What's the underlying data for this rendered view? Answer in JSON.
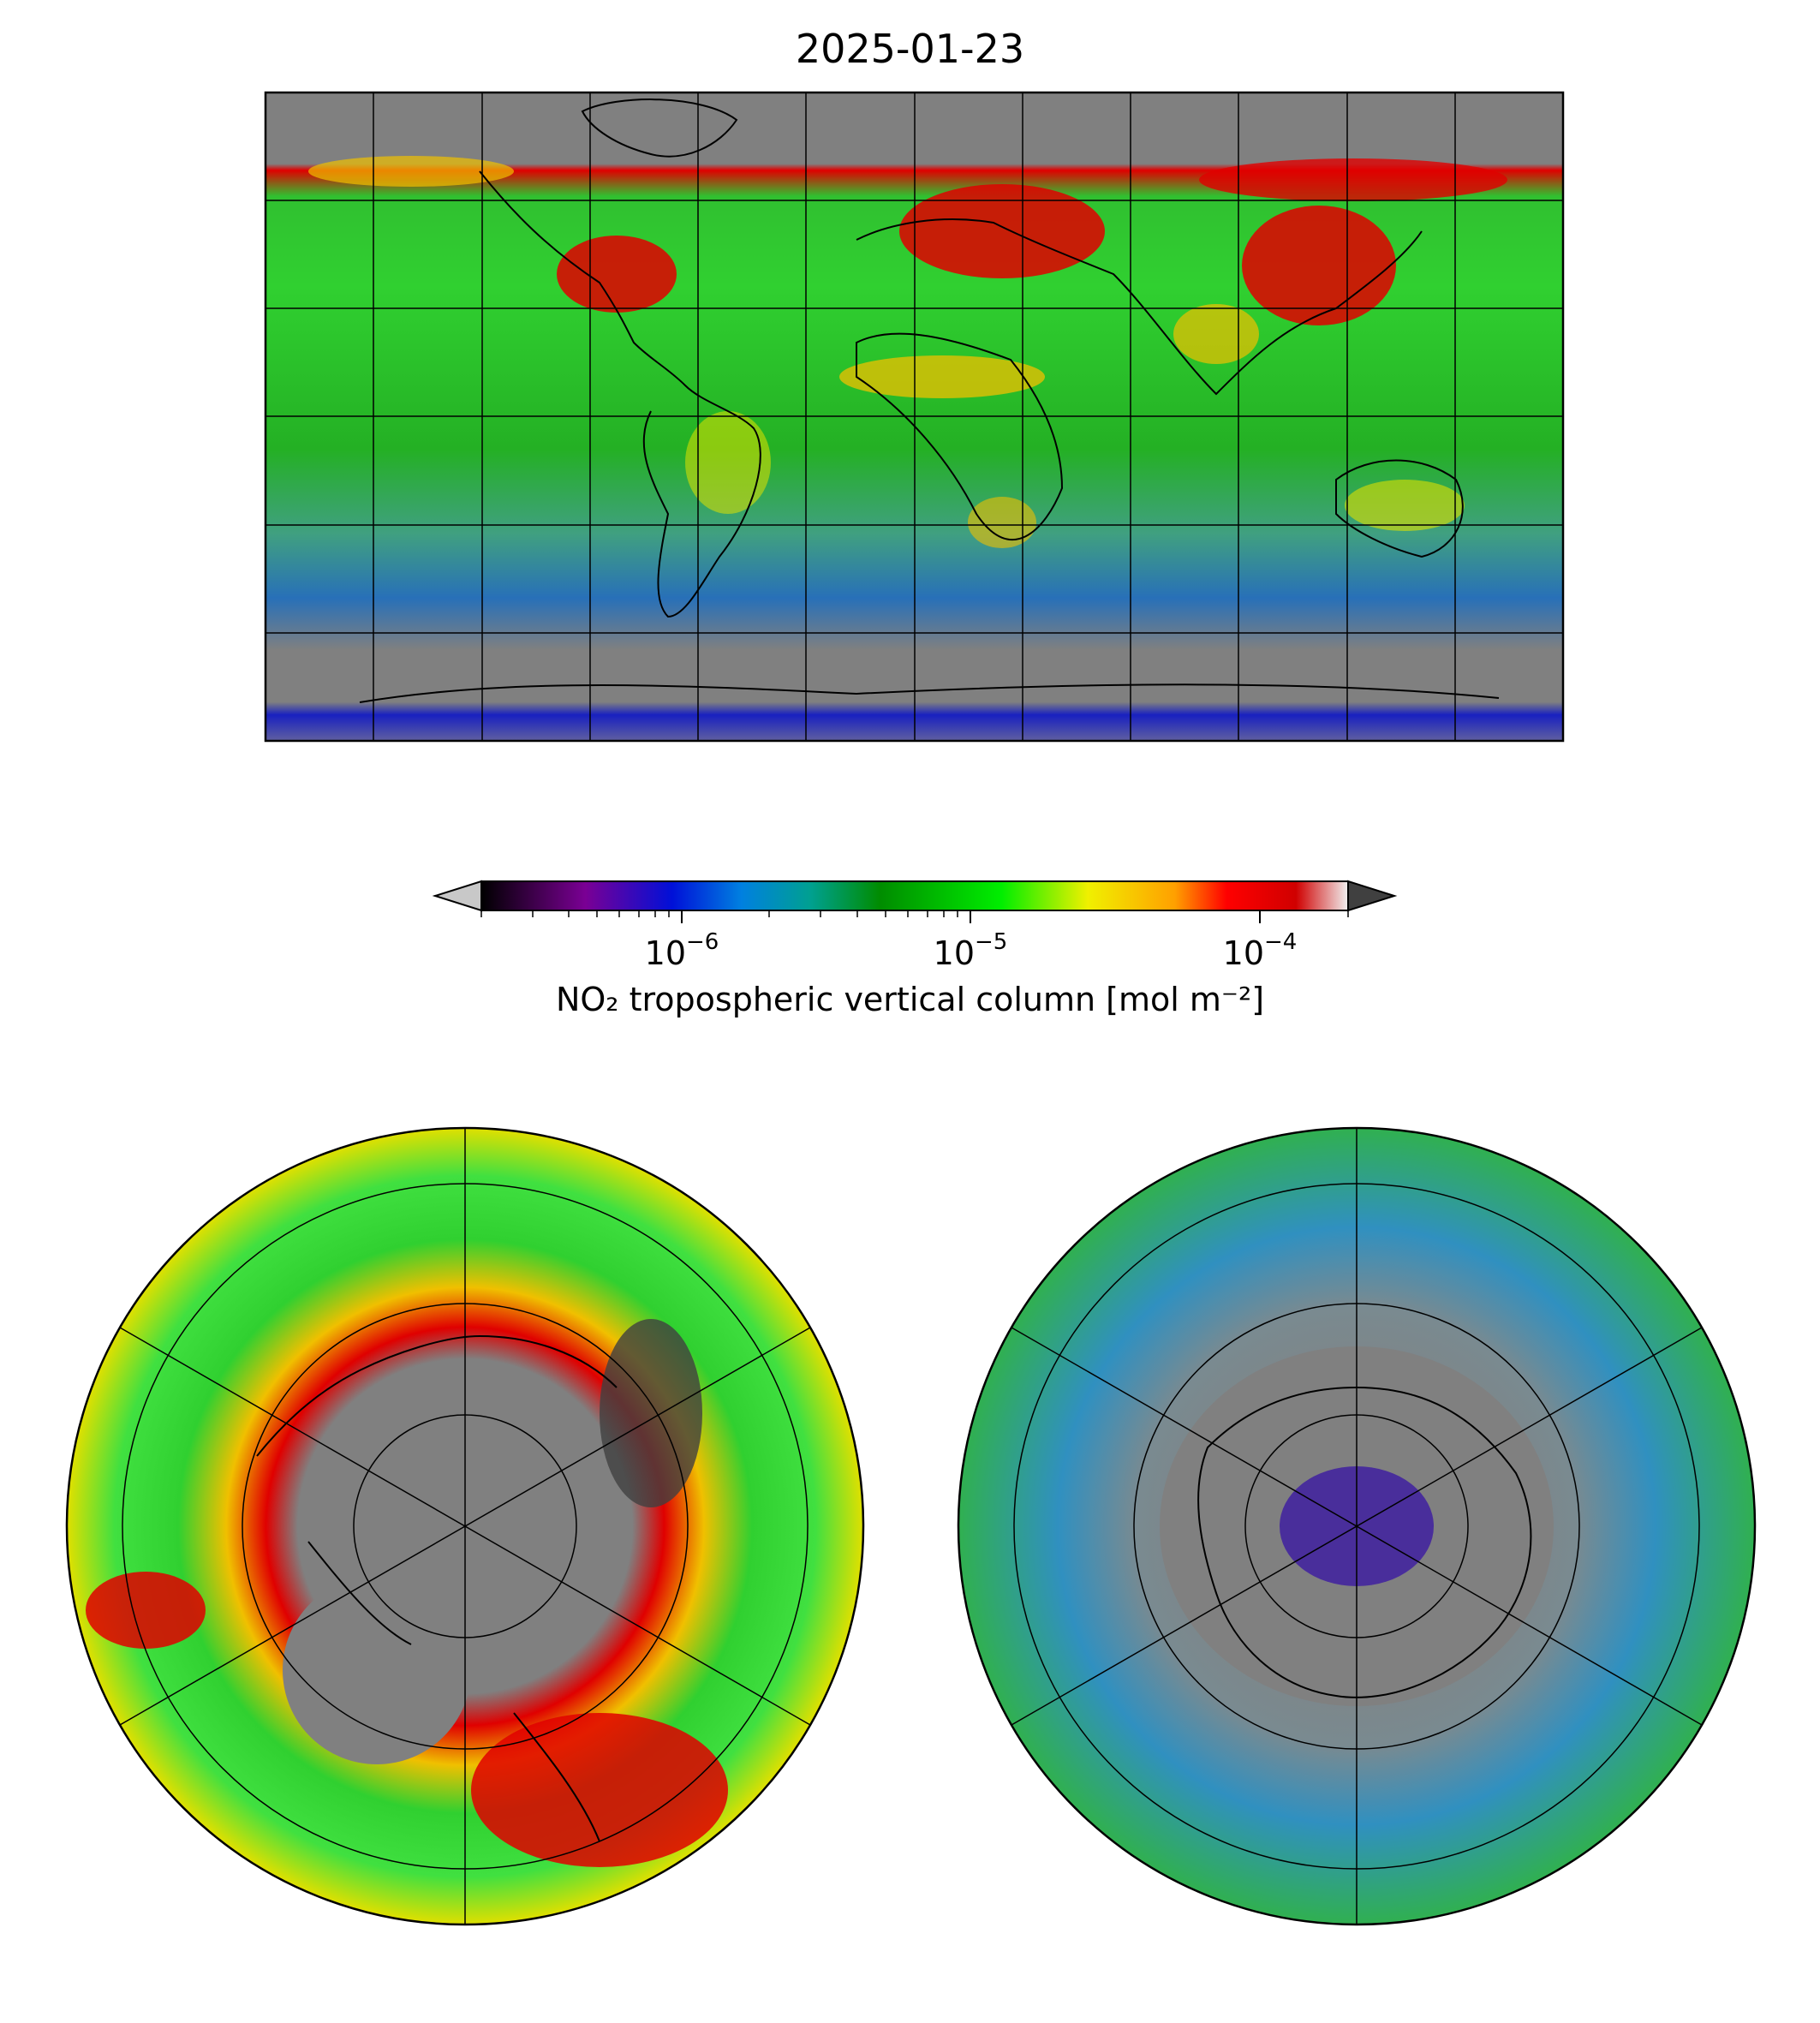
{
  "title": "2025-01-23",
  "colors": {
    "nodata": "#808080",
    "above_max": "#404040",
    "below_min": "#c8c8c8",
    "scale": [
      "#000000",
      "#7a0094",
      "#0010d8",
      "#0080e0",
      "#00a090",
      "#008c00",
      "#00ee00",
      "#f0f000",
      "#ffa000",
      "#ff0000",
      "#d00000",
      "#f0f0f0"
    ]
  },
  "colorbar": {
    "label": "NO₂ tropospheric vertical column [mol m⁻²]",
    "scale": "log",
    "range": [
      2e-07,
      0.0002
    ],
    "extend": "both",
    "ticks": [
      {
        "value": 1e-06,
        "base": "10",
        "exp": "−6"
      },
      {
        "value": 1e-05,
        "base": "10",
        "exp": "−5"
      },
      {
        "value": 0.0001,
        "base": "10",
        "exp": "−4"
      }
    ]
  },
  "maps": [
    {
      "id": "global",
      "projection": "plate-carree",
      "gridlines": true
    },
    {
      "id": "north-pole",
      "projection": "north-polar-stereographic",
      "gridlines": true
    },
    {
      "id": "south-pole",
      "projection": "south-polar-stereographic",
      "gridlines": true
    }
  ]
}
